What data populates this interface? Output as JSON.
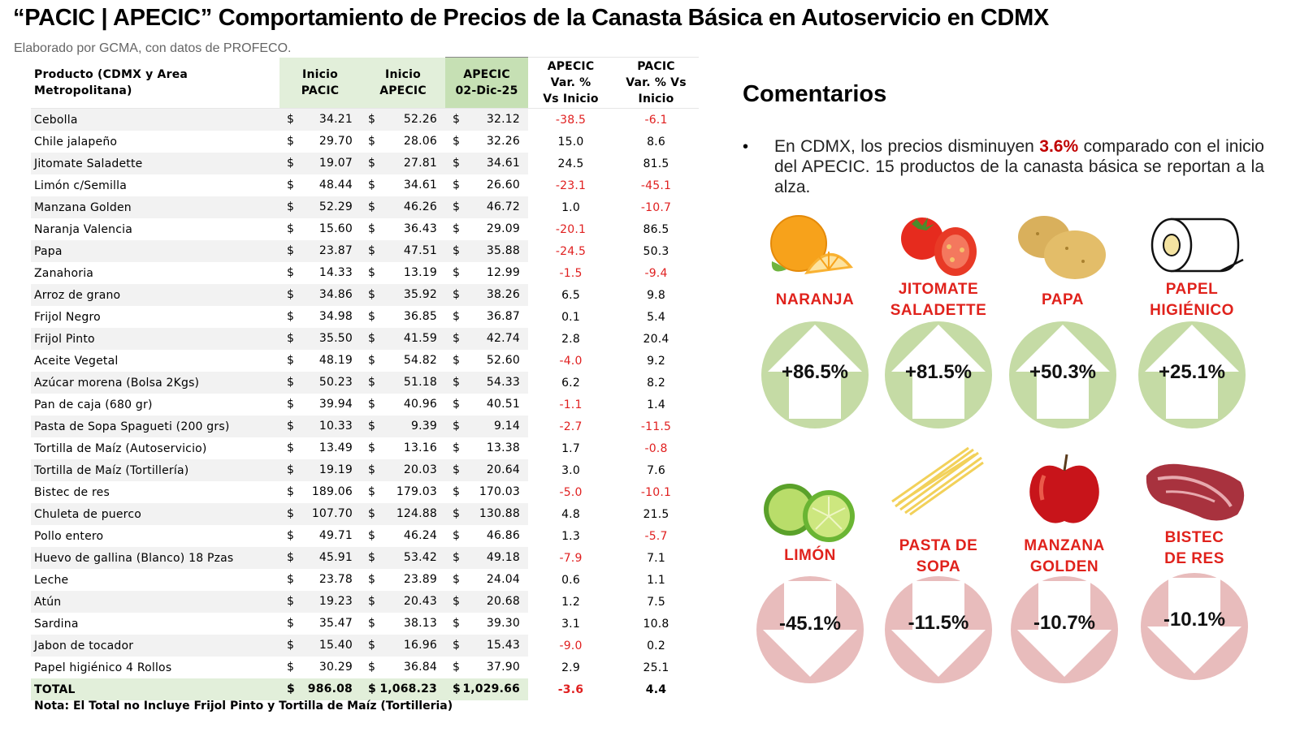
{
  "header": {
    "title": "“PACIC | APECIC” Comportamiento de Precios de la Canasta Básica en Autoservicio en CDMX",
    "subtitle": "Elaborado por GCMA, con datos de PROFECO."
  },
  "table": {
    "col_product": "Producto (CDMX y Area Metropolitana)",
    "col_pacic": [
      "Inicio",
      "PACIC"
    ],
    "col_apecic": [
      "Inicio",
      "APECIC"
    ],
    "col_current": [
      "APECIC",
      "02-Dic-25"
    ],
    "col_var_apecic": [
      "APECIC",
      "Var. %",
      "Vs  Inicio"
    ],
    "col_var_pacic": [
      "PACIC",
      "Var. % Vs",
      "Inicio"
    ],
    "currency": "$",
    "rows": [
      {
        "product": "Cebolla",
        "pacic": "34.21",
        "apecic": "52.26",
        "current": "32.12",
        "var_apecic": "-38.5",
        "var_pacic": "-6.1"
      },
      {
        "product": "Chile jalapeño",
        "pacic": "29.70",
        "apecic": "28.06",
        "current": "32.26",
        "var_apecic": "15.0",
        "var_pacic": "8.6"
      },
      {
        "product": "Jitomate Saladette",
        "pacic": "19.07",
        "apecic": "27.81",
        "current": "34.61",
        "var_apecic": "24.5",
        "var_pacic": "81.5"
      },
      {
        "product": "Limón c/Semilla",
        "pacic": "48.44",
        "apecic": "34.61",
        "current": "26.60",
        "var_apecic": "-23.1",
        "var_pacic": "-45.1"
      },
      {
        "product": "Manzana Golden",
        "pacic": "52.29",
        "apecic": "46.26",
        "current": "46.72",
        "var_apecic": "1.0",
        "var_pacic": "-10.7"
      },
      {
        "product": "Naranja Valencia",
        "pacic": "15.60",
        "apecic": "36.43",
        "current": "29.09",
        "var_apecic": "-20.1",
        "var_pacic": "86.5"
      },
      {
        "product": "Papa",
        "pacic": "23.87",
        "apecic": "47.51",
        "current": "35.88",
        "var_apecic": "-24.5",
        "var_pacic": "50.3"
      },
      {
        "product": "Zanahoria",
        "pacic": "14.33",
        "apecic": "13.19",
        "current": "12.99",
        "var_apecic": "-1.5",
        "var_pacic": "-9.4"
      },
      {
        "product": "Arroz de grano",
        "pacic": "34.86",
        "apecic": "35.92",
        "current": "38.26",
        "var_apecic": "6.5",
        "var_pacic": "9.8"
      },
      {
        "product": "Frijol Negro",
        "pacic": "34.98",
        "apecic": "36.85",
        "current": "36.87",
        "var_apecic": "0.1",
        "var_pacic": "5.4"
      },
      {
        "product": "Frijol Pinto",
        "pacic": "35.50",
        "apecic": "41.59",
        "current": "42.74",
        "var_apecic": "2.8",
        "var_pacic": "20.4"
      },
      {
        "product": "Aceite Vegetal",
        "pacic": "48.19",
        "apecic": "54.82",
        "current": "52.60",
        "var_apecic": "-4.0",
        "var_pacic": "9.2"
      },
      {
        "product": "Azúcar morena (Bolsa 2Kgs)",
        "pacic": "50.23",
        "apecic": "51.18",
        "current": "54.33",
        "var_apecic": "6.2",
        "var_pacic": "8.2"
      },
      {
        "product": "Pan de caja (680 gr)",
        "pacic": "39.94",
        "apecic": "40.96",
        "current": "40.51",
        "var_apecic": "-1.1",
        "var_pacic": "1.4"
      },
      {
        "product": "Pasta de Sopa Spagueti (200 grs)",
        "pacic": "10.33",
        "apecic": "9.39",
        "current": "9.14",
        "var_apecic": "-2.7",
        "var_pacic": "-11.5"
      },
      {
        "product": "Tortilla de Maíz (Autoservicio)",
        "pacic": "13.49",
        "apecic": "13.16",
        "current": "13.38",
        "var_apecic": "1.7",
        "var_pacic": "-0.8"
      },
      {
        "product": "Tortilla de Maíz (Tortillería)",
        "pacic": "19.19",
        "apecic": "20.03",
        "current": "20.64",
        "var_apecic": "3.0",
        "var_pacic": "7.6"
      },
      {
        "product": "Bistec de res",
        "pacic": "189.06",
        "apecic": "179.03",
        "current": "170.03",
        "var_apecic": "-5.0",
        "var_pacic": "-10.1"
      },
      {
        "product": "Chuleta de puerco",
        "pacic": "107.70",
        "apecic": "124.88",
        "current": "130.88",
        "var_apecic": "4.8",
        "var_pacic": "21.5"
      },
      {
        "product": "Pollo entero",
        "pacic": "49.71",
        "apecic": "46.24",
        "current": "46.86",
        "var_apecic": "1.3",
        "var_pacic": "-5.7"
      },
      {
        "product": "Huevo de gallina (Blanco) 18 Pzas",
        "pacic": "45.91",
        "apecic": "53.42",
        "current": "49.18",
        "var_apecic": "-7.9",
        "var_pacic": "7.1"
      },
      {
        "product": "Leche",
        "pacic": "23.78",
        "apecic": "23.89",
        "current": "24.04",
        "var_apecic": "0.6",
        "var_pacic": "1.1"
      },
      {
        "product": "Atún",
        "pacic": "19.23",
        "apecic": "20.43",
        "current": "20.68",
        "var_apecic": "1.2",
        "var_pacic": "7.5"
      },
      {
        "product": "Sardina",
        "pacic": "35.47",
        "apecic": "38.13",
        "current": "39.30",
        "var_apecic": "3.1",
        "var_pacic": "10.8"
      },
      {
        "product": "Jabon de tocador",
        "pacic": "15.40",
        "apecic": "16.96",
        "current": "15.43",
        "var_apecic": "-9.0",
        "var_pacic": "0.2"
      },
      {
        "product": "Papel higiénico 4 Rollos",
        "pacic": "30.29",
        "apecic": "36.84",
        "current": "37.90",
        "var_apecic": "2.9",
        "var_pacic": "25.1"
      }
    ],
    "total": {
      "product": "TOTAL",
      "pacic": "986.08",
      "apecic": "1,068.23",
      "current": "1,029.66",
      "var_apecic": "-3.6",
      "var_pacic": "4.4"
    },
    "note": "Nota: El Total no Incluye Frijol Pinto y Tortilla de Maíz (Tortilleria)"
  },
  "comments": {
    "title": "Comentarios",
    "bullet": "•",
    "text_before": "En CDMX, los precios disminuyen ",
    "highlight": "3.6%",
    "text_after": " comparado con el inicio del APECIC. 15 productos de la canasta básica se reportan a la alza."
  },
  "highlights": {
    "up_color": "#c5dba5",
    "down_color": "#e8bcbc",
    "label_color": "#e0221c",
    "up": [
      {
        "icon": "orange-icon",
        "label": [
          "NARANJA"
        ],
        "value": "+86.5%"
      },
      {
        "icon": "tomato-icon",
        "label": [
          "JITOMATE",
          "SALADETTE"
        ],
        "value": "+81.5%"
      },
      {
        "icon": "potato-icon",
        "label": [
          "PAPA"
        ],
        "value": "+50.3%"
      },
      {
        "icon": "toilet-paper-icon",
        "label": [
          "PAPEL",
          "HIGIÉNICO"
        ],
        "value": "+25.1%"
      }
    ],
    "down": [
      {
        "icon": "lime-icon",
        "label": [
          "LIMÓN"
        ],
        "value": "-45.1%"
      },
      {
        "icon": "pasta-icon",
        "label": [
          "PASTA DE",
          "SOPA"
        ],
        "value": "-11.5%"
      },
      {
        "icon": "apple-icon",
        "label": [
          "MANZANA",
          "GOLDEN"
        ],
        "value": "-10.7%"
      },
      {
        "icon": "steak-icon",
        "label": [
          "BISTEC",
          "DE RES"
        ],
        "value": "-10.1%"
      }
    ]
  }
}
